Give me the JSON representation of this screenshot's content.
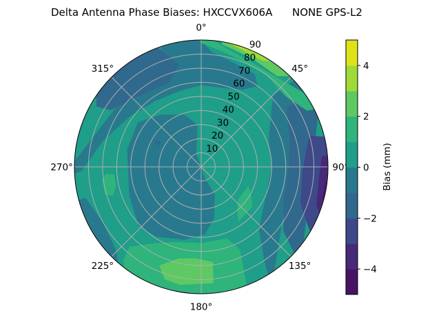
{
  "chart_data": {
    "type": "polar-contour",
    "title": "Delta Antenna Phase Biases: HXCCVX606A      NONE GPS-L2",
    "theta_direction": "clockwise",
    "theta_zero": "top",
    "theta_ticks": [
      "0°",
      "45°",
      "90°",
      "135°",
      "180°",
      "225°",
      "270°",
      "315°"
    ],
    "theta_tick_values": [
      0,
      45,
      90,
      135,
      180,
      225,
      270,
      315
    ],
    "r_ticks": [
      10,
      20,
      30,
      40,
      50,
      60,
      70,
      80,
      90
    ],
    "r_label_angle": 22.5,
    "rlim": [
      0,
      90
    ],
    "grid": true,
    "colorbar": {
      "label": "Bias (mm)",
      "range": [
        -5,
        5
      ],
      "levels": [
        -5,
        -4,
        -3,
        -2,
        -1,
        0,
        1,
        2,
        3,
        4,
        5
      ],
      "ticks": [
        4,
        2,
        0,
        -2,
        -4
      ],
      "tick_labels": [
        "4",
        "2",
        "0",
        "−2",
        "−4"
      ],
      "colors": [
        "#471365",
        "#482878",
        "#3e4989",
        "#31688e",
        "#29798e",
        "#1f9e89",
        "#2fb47c",
        "#5ec962",
        "#a0da39",
        "#dde318"
      ]
    },
    "background_level": 0,
    "regions": [
      {
        "level": -1,
        "points": [
          [
            265,
            100
          ],
          [
            268,
            85
          ],
          [
            285,
            72
          ],
          [
            305,
            62
          ],
          [
            325,
            57
          ],
          [
            345,
            56
          ],
          [
            0,
            58
          ],
          [
            15,
            58
          ],
          [
            28,
            62
          ],
          [
            35,
            70
          ],
          [
            30,
            76
          ],
          [
            15,
            78
          ],
          [
            5,
            82
          ],
          [
            0,
            90
          ],
          [
            350,
            100
          ]
        ]
      },
      {
        "level": -2,
        "points": [
          [
            300,
            86
          ],
          [
            312,
            100
          ],
          [
            338,
            95
          ],
          [
            348,
            74
          ],
          [
            339,
            64
          ],
          [
            318,
            67
          ],
          [
            302,
            76
          ]
        ]
      },
      {
        "level": -1,
        "points": [
          [
            45,
            72
          ],
          [
            48,
            100
          ],
          [
            150,
            100
          ],
          [
            146,
            80
          ],
          [
            137,
            60
          ],
          [
            112,
            50
          ],
          [
            90,
            50
          ],
          [
            67,
            52
          ]
        ]
      },
      {
        "level": -2,
        "points": [
          [
            55,
            74
          ],
          [
            58,
            100
          ],
          [
            135,
            100
          ],
          [
            128,
            74
          ],
          [
            112,
            63
          ],
          [
            90,
            62
          ],
          [
            72,
            66
          ]
        ]
      },
      {
        "level": -3,
        "points": [
          [
            74,
            80
          ],
          [
            78,
            100
          ],
          [
            125,
            100
          ],
          [
            118,
            85
          ],
          [
            110,
            75
          ],
          [
            92,
            72
          ],
          [
            80,
            76
          ]
        ]
      },
      {
        "level": -4,
        "points": [
          [
            84,
            100
          ],
          [
            85,
            86
          ],
          [
            95,
            84
          ],
          [
            108,
            86
          ],
          [
            118,
            100
          ]
        ]
      },
      {
        "level": -5,
        "points": [
          [
            92,
            100
          ],
          [
            97,
            89
          ],
          [
            105,
            89
          ],
          [
            112,
            100
          ]
        ]
      },
      {
        "level": -1,
        "points": [
          [
            255,
            100
          ],
          [
            255,
            85
          ],
          [
            240,
            80
          ],
          [
            225,
            85
          ],
          [
            215,
            100
          ]
        ]
      },
      {
        "level": -2,
        "points": [
          [
            250,
            100
          ],
          [
            248,
            92
          ],
          [
            235,
            92
          ],
          [
            228,
            100
          ]
        ]
      },
      {
        "level": -1,
        "points": [
          [
            355,
            30
          ],
          [
            340,
            10
          ],
          [
            162,
            8
          ],
          [
            154,
            22
          ],
          [
            166,
            38
          ],
          [
            177,
            48
          ],
          [
            193,
            53
          ],
          [
            213,
            59
          ],
          [
            227,
            61
          ],
          [
            248,
            55
          ],
          [
            283,
            54
          ],
          [
            305,
            55
          ],
          [
            322,
            47
          ],
          [
            342,
            39
          ]
        ]
      },
      {
        "level": -2,
        "points": [
          [
            296,
            36
          ],
          [
            300,
            38
          ],
          [
            302,
            34
          ],
          [
            298,
            33
          ]
        ]
      },
      {
        "level": 1,
        "points": [
          [
            222,
            76
          ],
          [
            212,
            64
          ],
          [
            201,
            57
          ],
          [
            180,
            54
          ],
          [
            160,
            54
          ],
          [
            155,
            65
          ],
          [
            157,
            76
          ],
          [
            160,
            100
          ],
          [
            212,
            100
          ],
          [
            220,
            86
          ]
        ]
      },
      {
        "level": 2,
        "points": [
          [
            203,
            76
          ],
          [
            194,
            67
          ],
          [
            183,
            65
          ],
          [
            173,
            68
          ],
          [
            174,
            83
          ],
          [
            190,
            85
          ],
          [
            198,
            84
          ]
        ]
      },
      {
        "level": 1,
        "points": [
          [
            266,
            68
          ],
          [
            265,
            62
          ],
          [
            257,
            62
          ],
          [
            252,
            66
          ],
          [
            254,
            71
          ],
          [
            262,
            71
          ]
        ]
      },
      {
        "level": 1,
        "points": [
          [
            112,
            36
          ],
          [
            118,
            40
          ],
          [
            128,
            46
          ],
          [
            146,
            47
          ],
          [
            140,
            40
          ],
          [
            132,
            35
          ]
        ]
      },
      {
        "level": 1,
        "points": [
          [
            355,
            100
          ],
          [
            0,
            88
          ],
          [
            15,
            82
          ],
          [
            35,
            80
          ],
          [
            50,
            78
          ],
          [
            62,
            85
          ],
          [
            65,
            100
          ]
        ]
      },
      {
        "level": 2,
        "points": [
          [
            5,
            100
          ],
          [
            10,
            88
          ],
          [
            25,
            85
          ],
          [
            40,
            84
          ],
          [
            50,
            100
          ]
        ]
      },
      {
        "level": 3,
        "points": [
          [
            8,
            100
          ],
          [
            15,
            89
          ],
          [
            30,
            87
          ],
          [
            42,
            100
          ]
        ]
      },
      {
        "level": 4,
        "points": [
          [
            5,
            100
          ],
          [
            10,
            90
          ],
          [
            25,
            90
          ],
          [
            30,
            100
          ]
        ]
      }
    ]
  }
}
